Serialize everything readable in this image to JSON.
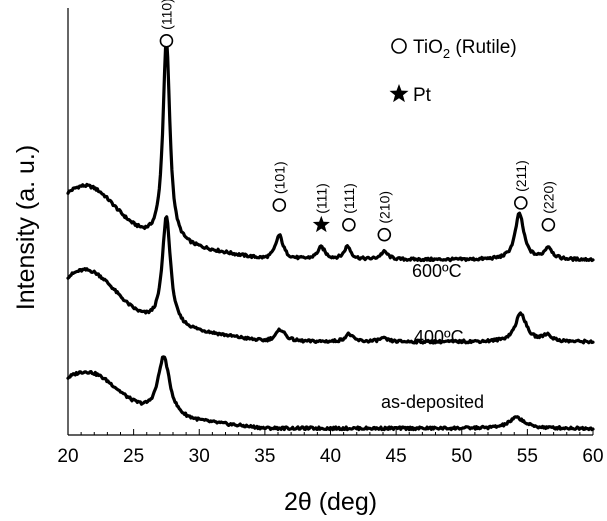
{
  "chart_data": {
    "type": "line",
    "xlabel": "2θ (deg)",
    "ylabel": "Intensity (a. u.)",
    "xlim": [
      20,
      60
    ],
    "x_ticks": [
      20,
      25,
      30,
      35,
      40,
      45,
      50,
      55,
      60
    ],
    "y_ticks_shown": false,
    "grid": false,
    "legend": {
      "placement": "top-right",
      "entries": [
        {
          "marker": "open-circle",
          "label": "TiO",
          "sub": "2",
          "suffix": " (Rutile)"
        },
        {
          "marker": "star",
          "label": "Pt"
        }
      ]
    },
    "series": [
      {
        "name": "600ºC",
        "baseline": 1.6,
        "broad": {
          "center": 21.5,
          "width": 3.0,
          "height": 0.4
        },
        "drift": 0.3,
        "peaks": [
          {
            "x": 27.5,
            "height": 1.85,
            "width": 0.32
          },
          {
            "x": 36.1,
            "height": 0.22,
            "width": 0.35
          },
          {
            "x": 39.3,
            "height": 0.11,
            "width": 0.35
          },
          {
            "x": 41.3,
            "height": 0.12,
            "width": 0.3
          },
          {
            "x": 44.1,
            "height": 0.07,
            "width": 0.35
          },
          {
            "x": 54.4,
            "height": 0.42,
            "width": 0.4
          },
          {
            "x": 56.6,
            "height": 0.11,
            "width": 0.35
          }
        ]
      },
      {
        "name": "400ºC",
        "baseline": 0.85,
        "broad": {
          "center": 21.5,
          "width": 3.0,
          "height": 0.4
        },
        "drift": 0.28,
        "peaks": [
          {
            "x": 27.5,
            "height": 1.0,
            "width": 0.38
          },
          {
            "x": 36.2,
            "height": 0.11,
            "width": 0.45
          },
          {
            "x": 41.4,
            "height": 0.07,
            "width": 0.35
          },
          {
            "x": 44.0,
            "height": 0.03,
            "width": 0.4
          },
          {
            "x": 54.5,
            "height": 0.26,
            "width": 0.5
          },
          {
            "x": 56.5,
            "height": 0.06,
            "width": 0.4
          }
        ]
      },
      {
        "name": "as-deposited",
        "baseline": 0.06,
        "broad": {
          "center": 21.5,
          "width": 3.2,
          "height": 0.35
        },
        "drift": 0.18,
        "peaks": [
          {
            "x": 27.3,
            "height": 0.55,
            "width": 0.55
          },
          {
            "x": 54.2,
            "height": 0.1,
            "width": 0.7
          }
        ]
      }
    ],
    "annotations": [
      {
        "x": 27.5,
        "y": 3.6,
        "marker": "circle",
        "label": "(110)"
      },
      {
        "x": 36.1,
        "y": 2.1,
        "marker": "circle",
        "label": "(101)"
      },
      {
        "x": 39.3,
        "y": 1.92,
        "marker": "star",
        "label": "(111)"
      },
      {
        "x": 41.4,
        "y": 1.92,
        "marker": "circle",
        "label": "(111)"
      },
      {
        "x": 44.1,
        "y": 1.83,
        "marker": "circle",
        "label": "(210)"
      },
      {
        "x": 54.5,
        "y": 2.12,
        "marker": "circle",
        "label": "(211)"
      },
      {
        "x": 56.6,
        "y": 1.92,
        "marker": "circle",
        "label": "(220)"
      }
    ]
  }
}
